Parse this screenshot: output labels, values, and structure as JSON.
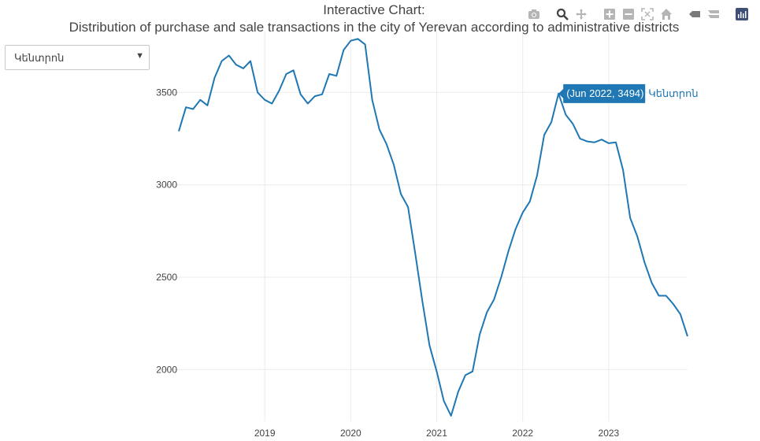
{
  "header": {
    "title_line1": "Interactive Chart:",
    "title_line2": "Distribution of purchase and sale transactions in the city of Yerevan according to administrative districts"
  },
  "dropdown": {
    "selected": "Կենտրոն"
  },
  "modebar": {
    "buttons": [
      "camera-icon",
      "zoom-icon",
      "pan-icon",
      "zoom-in-icon",
      "zoom-out-icon",
      "autoscale-icon",
      "home-icon",
      "spike-lines-icon",
      "compare-hover-icon",
      "plotly-logo-icon"
    ]
  },
  "tooltip": {
    "text": "(Jun 2022, 3494)",
    "series_label": "Կենտրոն",
    "date": "2022-06",
    "value": 3494
  },
  "colors": {
    "line": "#1f77b4",
    "grid": "#ebebeb",
    "tooltip_bg": "#1f77b4"
  },
  "chart_data": {
    "type": "line",
    "title": "Interactive Chart:",
    "subtitle": "Distribution of purchase and sale transactions in the city of Yerevan according to administrative districts",
    "xlabel": "",
    "ylabel": "",
    "x_ticks": [
      "2019",
      "2020",
      "2021",
      "2022",
      "2023"
    ],
    "y_ticks": [
      2000,
      2500,
      3000,
      3500
    ],
    "grid": true,
    "series": [
      {
        "name": "Կենտրոն",
        "x": [
          "2018-01",
          "2018-02",
          "2018-03",
          "2018-04",
          "2018-05",
          "2018-06",
          "2018-07",
          "2018-08",
          "2018-09",
          "2018-10",
          "2018-11",
          "2018-12",
          "2019-01",
          "2019-02",
          "2019-03",
          "2019-04",
          "2019-05",
          "2019-06",
          "2019-07",
          "2019-08",
          "2019-09",
          "2019-10",
          "2019-11",
          "2019-12",
          "2020-01",
          "2020-02",
          "2020-03",
          "2020-04",
          "2020-05",
          "2020-06",
          "2020-07",
          "2020-08",
          "2020-09",
          "2020-10",
          "2020-11",
          "2020-12",
          "2021-01",
          "2021-02",
          "2021-03",
          "2021-04",
          "2021-05",
          "2021-06",
          "2021-07",
          "2021-08",
          "2021-09",
          "2021-10",
          "2021-11",
          "2021-12",
          "2022-01",
          "2022-02",
          "2022-03",
          "2022-04",
          "2022-05",
          "2022-06",
          "2022-07",
          "2022-08",
          "2022-09",
          "2022-10",
          "2022-11",
          "2022-12",
          "2023-01",
          "2023-02",
          "2023-03",
          "2023-04",
          "2023-05",
          "2023-06",
          "2023-07",
          "2023-08",
          "2023-09",
          "2023-10",
          "2023-11",
          "2023-12"
        ],
        "values": [
          3290,
          3420,
          3410,
          3460,
          3430,
          3580,
          3670,
          3700,
          3650,
          3630,
          3670,
          3500,
          3460,
          3440,
          3510,
          3600,
          3620,
          3490,
          3440,
          3480,
          3490,
          3600,
          3590,
          3730,
          3780,
          3790,
          3760,
          3460,
          3300,
          3220,
          3110,
          2950,
          2880,
          2630,
          2370,
          2130,
          1990,
          1830,
          1750,
          1880,
          1970,
          1990,
          2190,
          2310,
          2380,
          2500,
          2640,
          2760,
          2850,
          2910,
          3050,
          3270,
          3340,
          3494,
          3380,
          3330,
          3250,
          3235,
          3230,
          3245,
          3225,
          3230,
          3080,
          2820,
          2720,
          2580,
          2470,
          2400,
          2400,
          2355,
          2300,
          2180
        ]
      }
    ]
  }
}
